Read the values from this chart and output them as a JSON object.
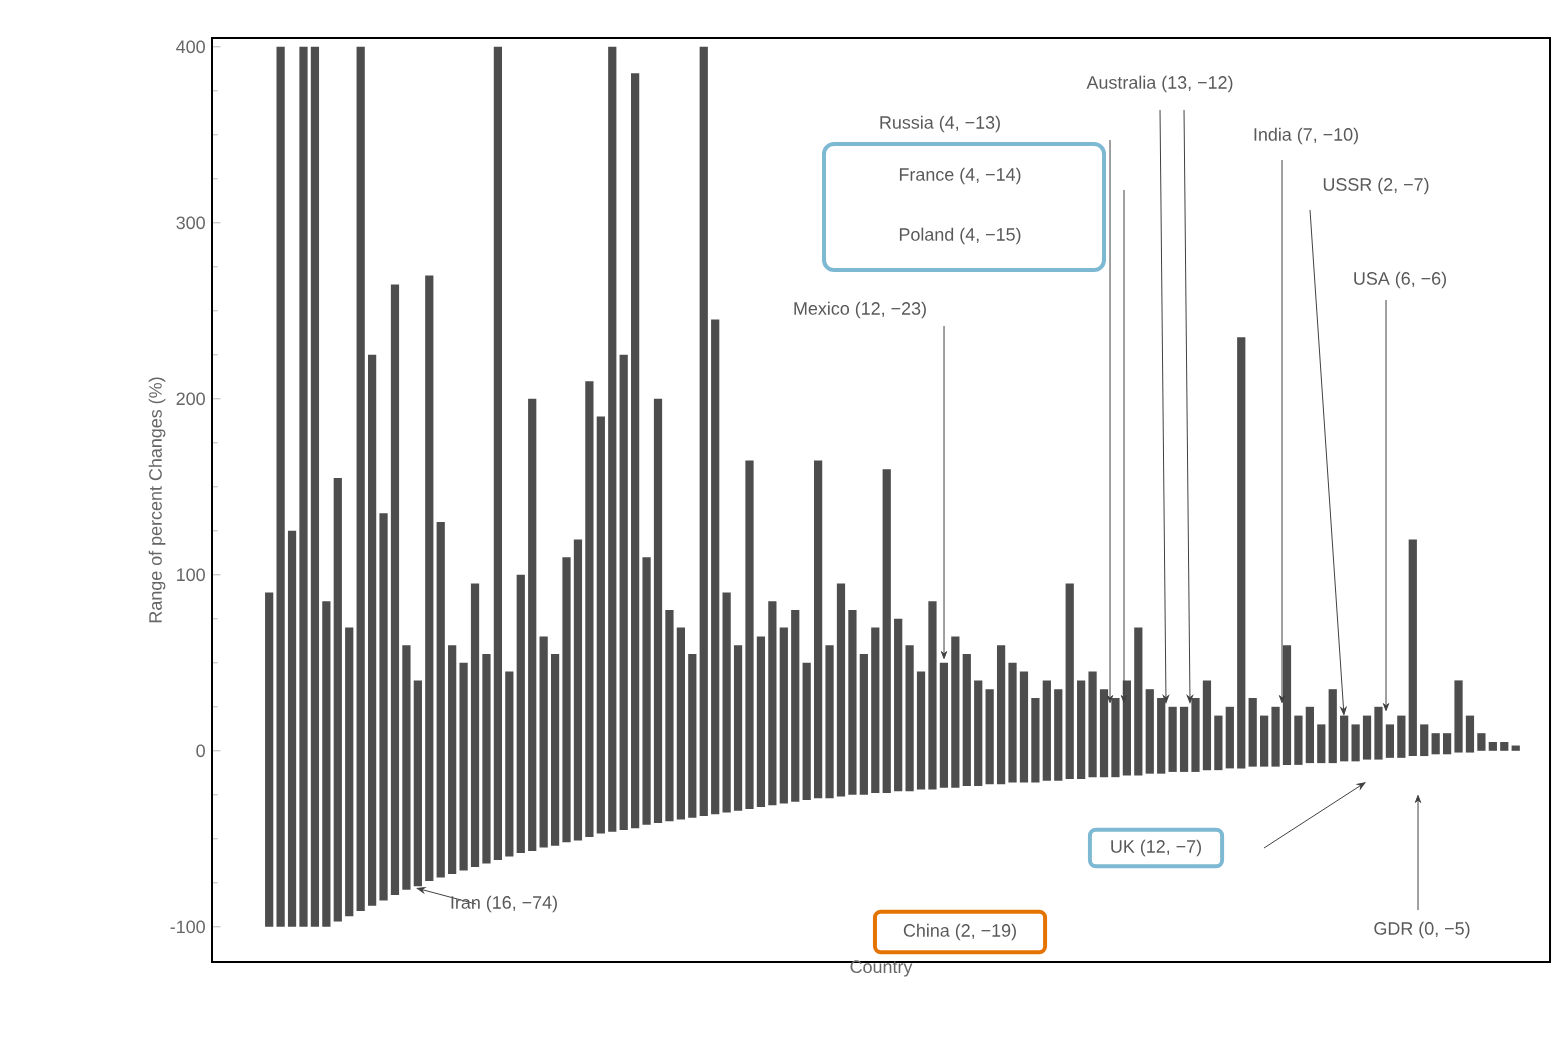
{
  "chart_data": {
    "type": "bar",
    "ylabel": "Range of percent Changes (%)",
    "xlabel": "Country",
    "categories": [
      null,
      null,
      null,
      null,
      null,
      null,
      null,
      null,
      null,
      null,
      null,
      null,
      null,
      null,
      null,
      null,
      null,
      null,
      null,
      null,
      null,
      null,
      null,
      null,
      null,
      null,
      null,
      null,
      null,
      null,
      null,
      null,
      null,
      null,
      null,
      null,
      null,
      null,
      null,
      null,
      null,
      null,
      null,
      null,
      null,
      null,
      null,
      null,
      null,
      null,
      null,
      null,
      null,
      null,
      null,
      null,
      null,
      null,
      null,
      null,
      null,
      null,
      null,
      null,
      null,
      null,
      null,
      null,
      null,
      null,
      null,
      null,
      null,
      null,
      null,
      null,
      null,
      null,
      null,
      null,
      null,
      null,
      null,
      null,
      null,
      null,
      null,
      null,
      null,
      null,
      null,
      null,
      null,
      null,
      null,
      null,
      null,
      null,
      null,
      null,
      null,
      null,
      null,
      null,
      null,
      null,
      null,
      null,
      null,
      null
    ],
    "base": [
      -100,
      -100,
      -100,
      -100,
      -100,
      -100,
      -97,
      -94,
      -91,
      -88,
      -85,
      -82,
      -79,
      -77,
      -74,
      -72,
      -70,
      -68,
      -66,
      -64,
      -62,
      -60,
      -58,
      -57,
      -55,
      -54,
      -52,
      -51,
      -49,
      -47,
      -46,
      -45,
      -44,
      -42,
      -41,
      -40,
      -39,
      -38,
      -37,
      -36,
      -35,
      -34,
      -33,
      -32,
      -31,
      -30,
      -29,
      -28,
      -27,
      -27,
      -26,
      -25,
      -25,
      -24,
      -24,
      -23,
      -23,
      -22,
      -22,
      -21,
      -21,
      -20,
      -20,
      -19,
      -19,
      -18,
      -18,
      -18,
      -17,
      -17,
      -16,
      -16,
      -15,
      -15,
      -15,
      -14,
      -14,
      -13,
      -13,
      -12,
      -12,
      -12,
      -11,
      -11,
      -10,
      -10,
      -9,
      -9,
      -9,
      -8,
      -8,
      -7,
      -7,
      -7,
      -6,
      -6,
      -5,
      -5,
      -4,
      -4,
      -3,
      -3,
      -2,
      -2,
      -1,
      -1,
      0,
      0,
      0,
      0
    ],
    "values": [
      190,
      500,
      225,
      500,
      500,
      185,
      252,
      164,
      491,
      313,
      220,
      347,
      139,
      117,
      344,
      202,
      130,
      118,
      161,
      119,
      462,
      105,
      158,
      257,
      120,
      109,
      162,
      171,
      259,
      237,
      446,
      270,
      429,
      152,
      241,
      120,
      109,
      93,
      437,
      281,
      125,
      94,
      198,
      97,
      116,
      100,
      109,
      78,
      192,
      87,
      121,
      105,
      80,
      94,
      184,
      98,
      83,
      67,
      107,
      71,
      86,
      75,
      60,
      54,
      79,
      68,
      63,
      48,
      57,
      52,
      111,
      56,
      60,
      50,
      45,
      54,
      84,
      48,
      43,
      37,
      37,
      42,
      51,
      31,
      35,
      245,
      39,
      29,
      34,
      68,
      28,
      32,
      22,
      42,
      26,
      21,
      25,
      30,
      19,
      24,
      123,
      18,
      12,
      12,
      41,
      21,
      10,
      5,
      5,
      3
    ],
    "color": "#4d4d4d",
    "ylim": [
      -120,
      405
    ],
    "yticks": [
      -100,
      0,
      100,
      200,
      300,
      400
    ],
    "annotations": [
      "Iran (16, −74)",
      "China (2, −19)",
      "UK (12, −7)",
      "GDR (0, −5)",
      "Mexico (12, −23)",
      "Russia (4, −13)",
      "France (4, −14)",
      "Poland (4, −15)",
      "Australia (13, −12)",
      "India (7, −10)",
      "USSR (2, −7)",
      "USA (6, −6)"
    ]
  }
}
